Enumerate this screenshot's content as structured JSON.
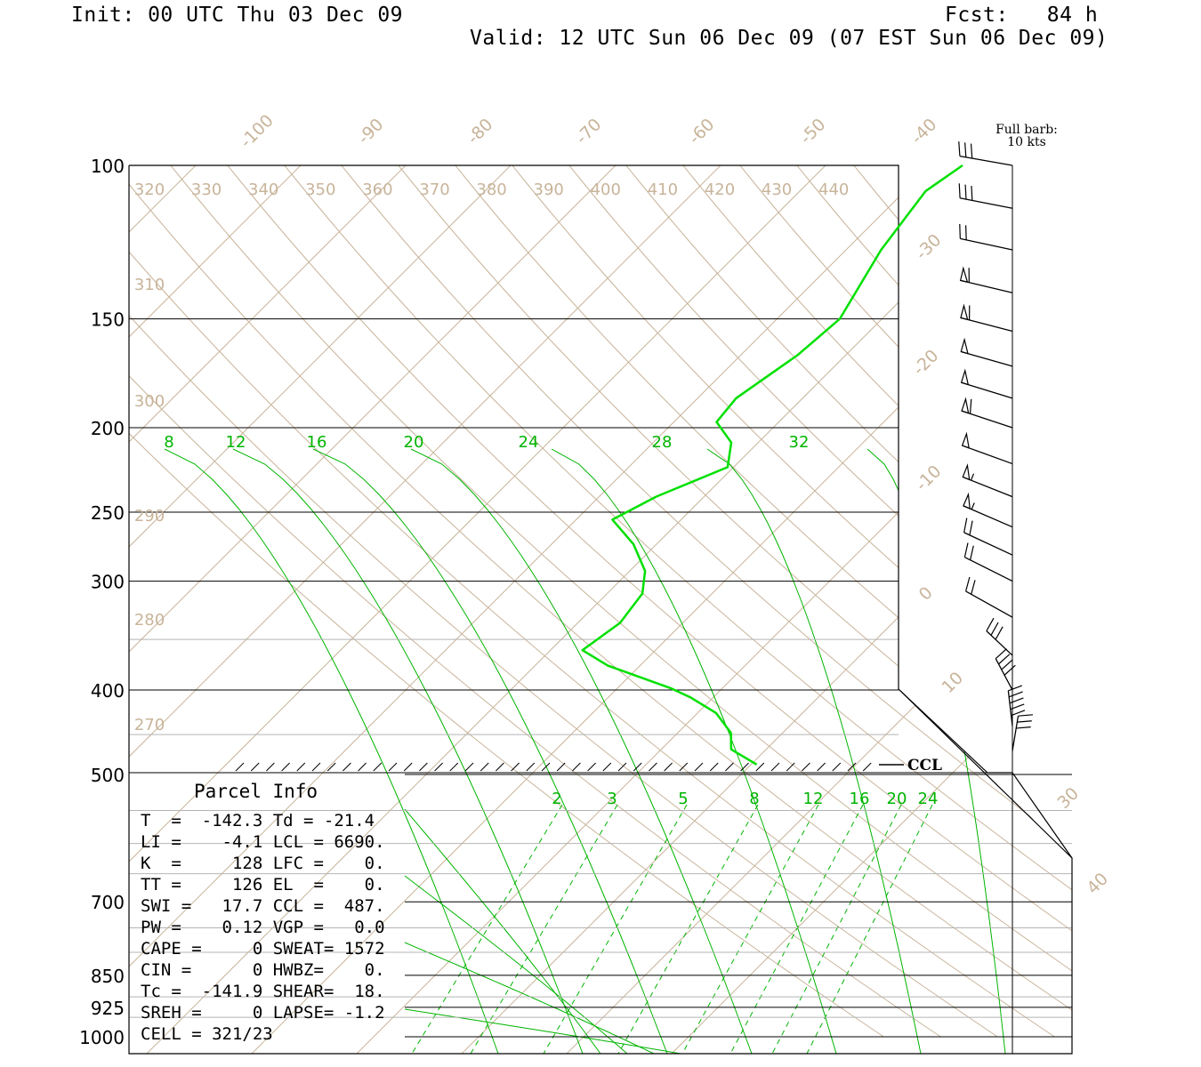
{
  "header": {
    "init": "Init: 00 UTC Thu 03 Dec 09",
    "fcst": "Fcst:   84 h",
    "valid": "Valid: 12 UTC Sun 06 Dec 09 (07 EST Sun 06 Dec 09)"
  },
  "barb_key": {
    "line1": "Full barb:",
    "line2": "10 kts"
  },
  "ccl_label": "CCL",
  "parcel_info": {
    "title": "Parcel Info",
    "rows": [
      "T  =  -142.3 Td = -21.4",
      "LI =    -4.1 LCL = 6690.",
      "K  =     128 LFC =    0.",
      "TT =     126 EL  =    0.",
      "SWI =   17.7 CCL =  487.",
      "PW =    0.12 VGP =   0.0",
      "CAPE =     0 SWEAT= 1572",
      "CIN =      0 HWBZ=    0.",
      "Tc =  -141.9 SHEAR=  18.",
      "SREH =     0 LAPSE= -1.2",
      "CELL = 321/23"
    ]
  },
  "colors": {
    "axis": "#000000",
    "isotherm": "#c8b49a",
    "mixing_ratio": "#00b400",
    "sounding": "#00e000",
    "isobar_grey": "#b4b4b4"
  },
  "chart_data": {
    "type": "skew-t",
    "title": "",
    "pressure_levels_hPa": [
      100,
      150,
      200,
      250,
      300,
      400,
      500,
      700,
      850,
      925,
      1000
    ],
    "isotherm_labels_C": [
      -100,
      -90,
      -80,
      -70,
      -60,
      -50,
      -40,
      -30,
      -20,
      -10,
      0,
      10,
      30,
      40
    ],
    "theta_labels_top_K": [
      320,
      330,
      340,
      350,
      360,
      370,
      380,
      390,
      400,
      410,
      420,
      430,
      440
    ],
    "theta_labels_left_K": [
      310,
      300,
      290,
      280,
      270
    ],
    "mixing_ratio_labels_upper_gkg": [
      8,
      12,
      16,
      20,
      24,
      28,
      32
    ],
    "mixing_ratio_labels_lower_gkg": [
      2,
      3,
      5,
      8,
      12,
      16,
      20,
      24
    ],
    "temperature_profile": [
      {
        "p": 100,
        "t": -52
      },
      {
        "p": 107,
        "t": -55
      },
      {
        "p": 125,
        "t": -57
      },
      {
        "p": 150,
        "t": -58
      },
      {
        "p": 165,
        "t": -61
      },
      {
        "p": 185,
        "t": -66
      },
      {
        "p": 197,
        "t": -67
      },
      {
        "p": 208,
        "t": -64
      },
      {
        "p": 222,
        "t": -63
      },
      {
        "p": 240,
        "t": -70
      },
      {
        "p": 255,
        "t": -74
      },
      {
        "p": 272,
        "t": -70
      },
      {
        "p": 292,
        "t": -67
      },
      {
        "p": 310,
        "t": -66
      },
      {
        "p": 335,
        "t": -67
      },
      {
        "p": 360,
        "t": -70
      },
      {
        "p": 375,
        "t": -66
      },
      {
        "p": 398,
        "t": -57
      },
      {
        "p": 408,
        "t": -54
      },
      {
        "p": 425,
        "t": -50
      },
      {
        "p": 448,
        "t": -47
      },
      {
        "p": 468,
        "t": -46
      },
      {
        "p": 487,
        "t": -42
      }
    ],
    "wind_barbs": [
      {
        "p": 100,
        "barbs": "3 full"
      },
      {
        "p": 112,
        "barbs": "3 full"
      },
      {
        "p": 125,
        "barbs": "2 full"
      },
      {
        "p": 140,
        "barbs": "flag + full"
      },
      {
        "p": 155,
        "barbs": "flag + full"
      },
      {
        "p": 170,
        "barbs": "flag"
      },
      {
        "p": 185,
        "barbs": "flag"
      },
      {
        "p": 200,
        "barbs": "flag + full"
      },
      {
        "p": 220,
        "barbs": "flag"
      },
      {
        "p": 240,
        "barbs": "flag + half"
      },
      {
        "p": 260,
        "barbs": "flag + half"
      },
      {
        "p": 280,
        "barbs": "2 full"
      },
      {
        "p": 300,
        "barbs": "2 full"
      },
      {
        "p": 330,
        "barbs": "2 full"
      },
      {
        "p": 365,
        "barbs": "3 full"
      },
      {
        "p": 400,
        "barbs": "4 full"
      },
      {
        "p": 440,
        "barbs": "5 full"
      },
      {
        "p": 470,
        "barbs": "3 full"
      }
    ]
  }
}
